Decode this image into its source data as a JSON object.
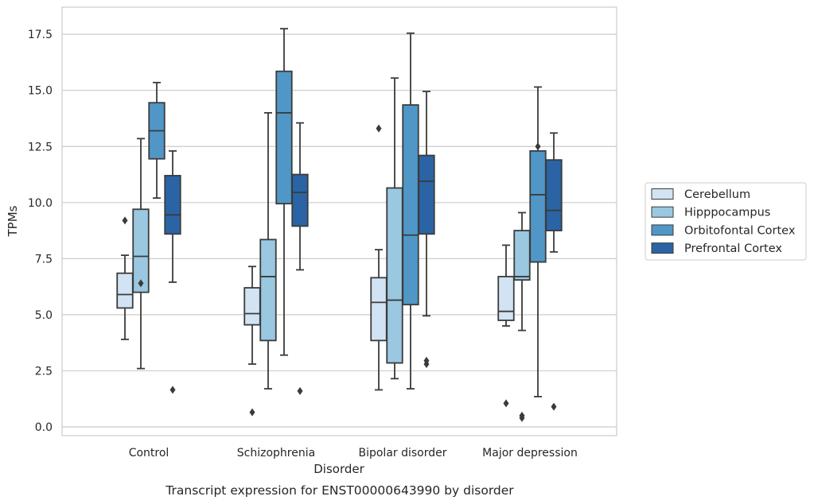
{
  "chart_data": {
    "type": "box",
    "caption": "Transcript expression for ENST00000643990 by disorder",
    "xlabel": "Disorder",
    "ylabel": "TPMs",
    "ylim": [
      -0.4,
      18.6
    ],
    "yticks": [
      0.0,
      2.5,
      5.0,
      7.5,
      10.0,
      12.5,
      15.0,
      17.5
    ],
    "ytick_labels": [
      "0.0",
      "2.5",
      "5.0",
      "7.5",
      "10.0",
      "12.5",
      "15.0",
      "17.5"
    ],
    "grid": "horizontal",
    "legend_placement": "right-center",
    "categories": [
      "Control",
      "Schizophrenia",
      "Bipolar disorder",
      "Major depression"
    ],
    "series": [
      {
        "name": "Cerebellum",
        "color": "#d2e3f3",
        "boxes": [
          {
            "whislo": 3.9,
            "q1": 5.3,
            "med": 5.9,
            "q3": 6.85,
            "whishi": 7.65,
            "fliers": [
              9.2
            ]
          },
          {
            "whislo": 2.8,
            "q1": 4.55,
            "med": 5.05,
            "q3": 6.2,
            "whishi": 7.15,
            "fliers": [
              0.65
            ]
          },
          {
            "whislo": 1.65,
            "q1": 3.85,
            "med": 5.55,
            "q3": 6.65,
            "whishi": 7.9,
            "fliers": [
              13.3
            ]
          },
          {
            "whislo": 4.5,
            "q1": 4.75,
            "med": 5.15,
            "q3": 6.7,
            "whishi": 8.1,
            "fliers": [
              1.05
            ]
          }
        ]
      },
      {
        "name": "Hipppocampus",
        "color": "#9ac8e0",
        "boxes": [
          {
            "whislo": 2.6,
            "q1": 6.0,
            "med": 7.6,
            "q3": 9.7,
            "whishi": 12.85,
            "fliers": [
              6.4
            ]
          },
          {
            "whislo": 1.7,
            "q1": 3.85,
            "med": 6.7,
            "q3": 8.35,
            "whishi": 14.0,
            "fliers": []
          },
          {
            "whislo": 2.15,
            "q1": 2.85,
            "med": 5.65,
            "q3": 10.65,
            "whishi": 15.55,
            "fliers": []
          },
          {
            "whislo": 4.3,
            "q1": 6.55,
            "med": 6.7,
            "q3": 8.75,
            "whishi": 9.55,
            "fliers": [
              0.4,
              0.5
            ]
          }
        ]
      },
      {
        "name": "Orbitofontal Cortex",
        "color": "#5097c8",
        "boxes": [
          {
            "whislo": 10.2,
            "q1": 11.95,
            "med": 13.2,
            "q3": 14.45,
            "whishi": 15.35,
            "fliers": []
          },
          {
            "whislo": 3.2,
            "q1": 9.95,
            "med": 14.0,
            "q3": 15.85,
            "whishi": 17.75,
            "fliers": []
          },
          {
            "whislo": 1.7,
            "q1": 5.45,
            "med": 8.55,
            "q3": 14.35,
            "whishi": 17.55,
            "fliers": []
          },
          {
            "whislo": 1.35,
            "q1": 7.35,
            "med": 10.35,
            "q3": 12.3,
            "whishi": 15.15,
            "fliers": [
              12.5
            ]
          }
        ]
      },
      {
        "name": "Prefrontal Cortex",
        "color": "#2a64a4",
        "boxes": [
          {
            "whislo": 6.45,
            "q1": 8.6,
            "med": 9.45,
            "q3": 11.2,
            "whishi": 12.3,
            "fliers": [
              1.65
            ]
          },
          {
            "whislo": 7.0,
            "q1": 8.95,
            "med": 10.45,
            "q3": 11.25,
            "whishi": 13.55,
            "fliers": [
              1.6
            ]
          },
          {
            "whislo": 4.95,
            "q1": 8.6,
            "med": 10.95,
            "q3": 12.1,
            "whishi": 14.95,
            "fliers": [
              2.8,
              2.95
            ]
          },
          {
            "whislo": 7.8,
            "q1": 8.75,
            "med": 9.65,
            "q3": 11.9,
            "whishi": 13.1,
            "fliers": [
              0.9
            ]
          }
        ]
      }
    ]
  }
}
